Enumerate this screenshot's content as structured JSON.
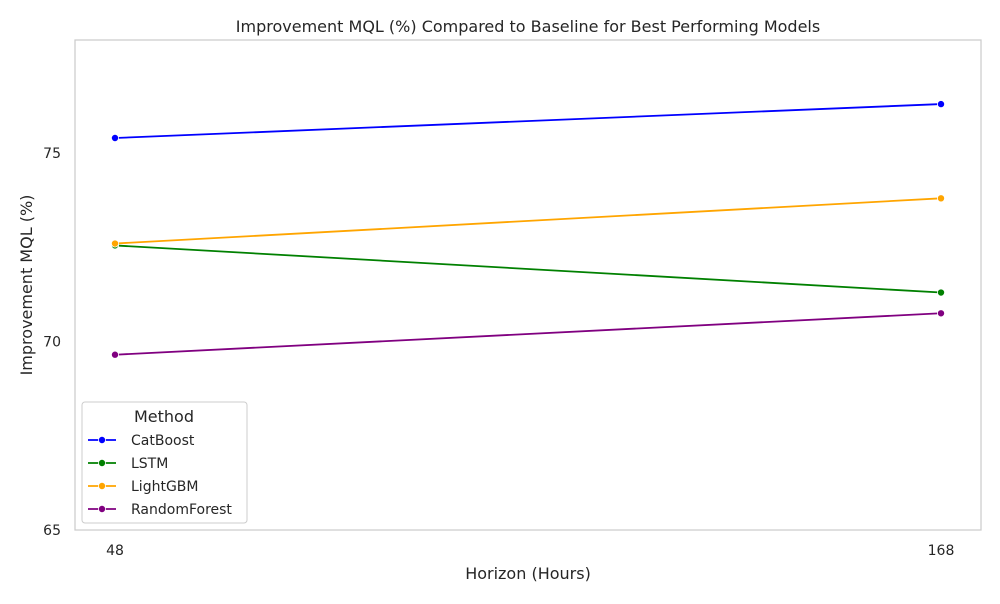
{
  "chart_data": {
    "type": "line",
    "title": "Improvement MQL (%) Compared to Baseline for Best Performing Models",
    "xlabel": "Horizon (Hours)",
    "ylabel": "Improvement MQL (%)",
    "x": [
      48,
      168
    ],
    "x_tick_labels": [
      "48",
      "168"
    ],
    "ylim": [
      65,
      78
    ],
    "y_ticks": [
      65,
      70,
      75
    ],
    "grid": false,
    "legend": {
      "title": "Method",
      "placement": "lower-left"
    },
    "series": [
      {
        "name": "CatBoost",
        "color": "#0000ff",
        "values": [
          75.4,
          76.3
        ]
      },
      {
        "name": "LSTM",
        "color": "#008000",
        "values": [
          72.55,
          71.3
        ]
      },
      {
        "name": "LightGBM",
        "color": "#ffa500",
        "values": [
          72.6,
          73.8
        ]
      },
      {
        "name": "RandomForest",
        "color": "#800080",
        "values": [
          69.65,
          70.75
        ]
      }
    ]
  }
}
